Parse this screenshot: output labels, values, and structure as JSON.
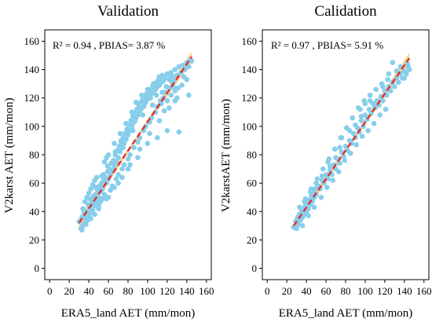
{
  "chart_data": [
    {
      "type": "scatter",
      "title": "Validation",
      "xlabel": "ERA5_land AET (mm/mon)",
      "ylabel": "V2karst AET (mm/mon)",
      "annotation": "R² = 0.94 , PBIAS= 3.87 %",
      "xlim": [
        -5,
        165
      ],
      "ylim": [
        -8,
        168
      ],
      "xticks": [
        0,
        20,
        40,
        60,
        80,
        100,
        120,
        140,
        160
      ],
      "yticks": [
        0,
        20,
        40,
        60,
        80,
        100,
        120,
        140,
        160
      ],
      "grid": false,
      "point_color": "#87CEEB",
      "fit_color": "#E32626",
      "band_color": "#F5C16C",
      "fit_line": {
        "x": [
          30,
          145
        ],
        "y": [
          32,
          149
        ]
      },
      "points": [
        [
          30,
          33
        ],
        [
          32,
          28
        ],
        [
          33,
          36
        ],
        [
          34,
          30
        ],
        [
          35,
          38
        ],
        [
          36,
          32
        ],
        [
          37,
          35
        ],
        [
          38,
          40
        ],
        [
          34,
          42
        ],
        [
          39,
          34
        ],
        [
          40,
          37
        ],
        [
          41,
          43
        ],
        [
          42,
          39
        ],
        [
          43,
          46
        ],
        [
          44,
          41
        ],
        [
          45,
          48
        ],
        [
          46,
          44
        ],
        [
          47,
          52
        ],
        [
          48,
          47
        ],
        [
          49,
          55
        ],
        [
          50,
          50
        ],
        [
          51,
          58
        ],
        [
          52,
          54
        ],
        [
          53,
          60
        ],
        [
          54,
          56
        ],
        [
          55,
          62
        ],
        [
          56,
          52
        ],
        [
          57,
          64
        ],
        [
          58,
          60
        ],
        [
          59,
          68
        ],
        [
          60,
          63
        ],
        [
          61,
          70
        ],
        [
          62,
          66
        ],
        [
          63,
          74
        ],
        [
          64,
          69
        ],
        [
          65,
          76
        ],
        [
          66,
          72
        ],
        [
          67,
          80
        ],
        [
          68,
          75
        ],
        [
          69,
          83
        ],
        [
          70,
          78
        ],
        [
          71,
          86
        ],
        [
          72,
          82
        ],
        [
          73,
          89
        ],
        [
          74,
          85
        ],
        [
          75,
          92
        ],
        [
          76,
          88
        ],
        [
          77,
          95
        ],
        [
          78,
          91
        ],
        [
          79,
          98
        ],
        [
          80,
          94
        ],
        [
          81,
          101
        ],
        [
          82,
          97
        ],
        [
          83,
          104
        ],
        [
          84,
          100
        ],
        [
          85,
          107
        ],
        [
          86,
          103
        ],
        [
          87,
          110
        ],
        [
          88,
          106
        ],
        [
          89,
          112
        ],
        [
          90,
          108
        ],
        [
          91,
          115
        ],
        [
          92,
          111
        ],
        [
          93,
          117
        ],
        [
          94,
          113
        ],
        [
          95,
          119
        ],
        [
          96,
          114
        ],
        [
          97,
          121
        ],
        [
          98,
          117
        ],
        [
          99,
          123
        ],
        [
          100,
          119
        ],
        [
          101,
          125
        ],
        [
          102,
          121
        ],
        [
          103,
          126
        ],
        [
          104,
          123
        ],
        [
          105,
          128
        ],
        [
          106,
          124
        ],
        [
          107,
          130
        ],
        [
          108,
          126
        ],
        [
          109,
          131
        ],
        [
          110,
          128
        ],
        [
          111,
          133
        ],
        [
          112,
          129
        ],
        [
          113,
          134
        ],
        [
          114,
          131
        ],
        [
          115,
          136
        ],
        [
          116,
          132
        ],
        [
          118,
          134
        ],
        [
          120,
          137
        ],
        [
          122,
          133
        ],
        [
          124,
          138
        ],
        [
          126,
          135
        ],
        [
          128,
          140
        ],
        [
          130,
          136
        ],
        [
          132,
          142
        ],
        [
          134,
          138
        ],
        [
          136,
          143
        ],
        [
          138,
          140
        ],
        [
          140,
          145
        ],
        [
          142,
          142
        ],
        [
          144,
          147
        ],
        [
          145,
          146
        ],
        [
          36,
          47
        ],
        [
          38,
          50
        ],
        [
          40,
          53
        ],
        [
          42,
          56
        ],
        [
          44,
          59
        ],
        [
          46,
          62
        ],
        [
          48,
          64
        ],
        [
          50,
          44
        ],
        [
          52,
          47
        ],
        [
          54,
          49
        ],
        [
          56,
          75
        ],
        [
          58,
          78
        ],
        [
          60,
          80
        ],
        [
          62,
          55
        ],
        [
          64,
          58
        ],
        [
          66,
          88
        ],
        [
          68,
          63
        ],
        [
          70,
          66
        ],
        [
          72,
          95
        ],
        [
          74,
          70
        ],
        [
          76,
          73
        ],
        [
          78,
          102
        ],
        [
          80,
          77
        ],
        [
          82,
          80
        ],
        [
          84,
          110
        ],
        [
          86,
          85
        ],
        [
          88,
          117
        ],
        [
          90,
          89
        ],
        [
          92,
          92
        ],
        [
          94,
          122
        ],
        [
          96,
          97
        ],
        [
          98,
          100
        ],
        [
          100,
          126
        ],
        [
          102,
          103
        ],
        [
          104,
          106
        ],
        [
          106,
          130
        ],
        [
          108,
          110
        ],
        [
          110,
          114
        ],
        [
          112,
          135
        ],
        [
          114,
          116
        ],
        [
          116,
          120
        ],
        [
          118,
          124
        ],
        [
          120,
          118
        ],
        [
          122,
          127
        ],
        [
          124,
          122
        ],
        [
          126,
          128
        ],
        [
          128,
          125
        ],
        [
          130,
          120
        ],
        [
          132,
          96
        ],
        [
          120,
          97
        ],
        [
          110,
          92
        ],
        [
          100,
          88
        ],
        [
          90,
          78
        ],
        [
          80,
          70
        ],
        [
          70,
          60
        ],
        [
          60,
          50
        ],
        [
          50,
          42
        ],
        [
          42,
          35
        ],
        [
          37,
          31
        ],
        [
          33,
          27
        ],
        [
          39,
          45
        ],
        [
          45,
          51
        ],
        [
          55,
          66
        ],
        [
          65,
          74
        ],
        [
          75,
          85
        ],
        [
          85,
          97
        ],
        [
          95,
          108
        ],
        [
          105,
          115
        ],
        [
          115,
          124
        ],
        [
          125,
          131
        ],
        [
          135,
          129
        ],
        [
          140,
          133
        ],
        [
          142,
          122
        ],
        [
          46,
          38
        ],
        [
          58,
          49
        ],
        [
          66,
          57
        ],
        [
          74,
          64
        ],
        [
          82,
          73
        ],
        [
          92,
          84
        ],
        [
          102,
          95
        ],
        [
          112,
          104
        ],
        [
          122,
          113
        ],
        [
          128,
          118
        ],
        [
          35,
          40
        ],
        [
          41,
          49
        ],
        [
          47,
          57
        ],
        [
          53,
          65
        ],
        [
          59,
          72
        ],
        [
          67,
          82
        ],
        [
          73,
          90
        ],
        [
          79,
          96
        ],
        [
          87,
          104
        ],
        [
          93,
          112
        ],
        [
          97,
          116
        ],
        [
          103,
          120
        ],
        [
          109,
          122
        ],
        [
          113,
          118
        ],
        [
          117,
          111
        ],
        [
          119,
          128
        ],
        [
          123,
          136
        ],
        [
          127,
          132
        ],
        [
          131,
          127
        ],
        [
          137,
          135
        ]
      ]
    },
    {
      "type": "scatter",
      "title": "Calidation",
      "xlabel": "ERA5_land AET (mm/mon)",
      "ylabel": "V2karstAET (mm/mon)",
      "annotation": "R² = 0.97 , PBIAS= 5.91 %",
      "xlim": [
        -5,
        165
      ],
      "ylim": [
        -8,
        168
      ],
      "xticks": [
        0,
        20,
        40,
        60,
        80,
        100,
        120,
        140,
        160
      ],
      "yticks": [
        0,
        20,
        40,
        60,
        80,
        100,
        120,
        140,
        160
      ],
      "grid": false,
      "point_color": "#87CEEB",
      "fit_color": "#E32626",
      "band_color": "#F5C16C",
      "fit_line": {
        "x": [
          27,
          145
        ],
        "y": [
          30,
          148
        ]
      },
      "points": [
        [
          27,
          29
        ],
        [
          29,
          33
        ],
        [
          30,
          28
        ],
        [
          31,
          36
        ],
        [
          32,
          31
        ],
        [
          33,
          38
        ],
        [
          34,
          34
        ],
        [
          35,
          40
        ],
        [
          36,
          36
        ],
        [
          37,
          42
        ],
        [
          38,
          38
        ],
        [
          39,
          44
        ],
        [
          40,
          40
        ],
        [
          41,
          46
        ],
        [
          42,
          42
        ],
        [
          43,
          48
        ],
        [
          44,
          45
        ],
        [
          45,
          51
        ],
        [
          46,
          47
        ],
        [
          47,
          53
        ],
        [
          48,
          50
        ],
        [
          49,
          56
        ],
        [
          50,
          52
        ],
        [
          52,
          58
        ],
        [
          54,
          56
        ],
        [
          56,
          62
        ],
        [
          58,
          60
        ],
        [
          60,
          66
        ],
        [
          62,
          63
        ],
        [
          64,
          69
        ],
        [
          66,
          66
        ],
        [
          68,
          73
        ],
        [
          70,
          70
        ],
        [
          72,
          77
        ],
        [
          74,
          74
        ],
        [
          76,
          82
        ],
        [
          78,
          79
        ],
        [
          80,
          86
        ],
        [
          82,
          83
        ],
        [
          84,
          90
        ],
        [
          86,
          88
        ],
        [
          88,
          95
        ],
        [
          90,
          92
        ],
        [
          92,
          99
        ],
        [
          94,
          96
        ],
        [
          96,
          104
        ],
        [
          98,
          100
        ],
        [
          100,
          108
        ],
        [
          102,
          105
        ],
        [
          104,
          112
        ],
        [
          106,
          109
        ],
        [
          108,
          116
        ],
        [
          110,
          113
        ],
        [
          112,
          118
        ],
        [
          114,
          115
        ],
        [
          116,
          121
        ],
        [
          118,
          118
        ],
        [
          120,
          125
        ],
        [
          122,
          122
        ],
        [
          124,
          128
        ],
        [
          126,
          125
        ],
        [
          128,
          131
        ],
        [
          130,
          128
        ],
        [
          132,
          134
        ],
        [
          134,
          131
        ],
        [
          136,
          137
        ],
        [
          138,
          134
        ],
        [
          140,
          139
        ],
        [
          142,
          137
        ],
        [
          144,
          142
        ],
        [
          145,
          140
        ],
        [
          33,
          43
        ],
        [
          39,
          49
        ],
        [
          45,
          56
        ],
        [
          51,
          63
        ],
        [
          57,
          70
        ],
        [
          63,
          77
        ],
        [
          69,
          84
        ],
        [
          75,
          92
        ],
        [
          81,
          99
        ],
        [
          87,
          106
        ],
        [
          93,
          113
        ],
        [
          99,
          118
        ],
        [
          105,
          122
        ],
        [
          111,
          126
        ],
        [
          117,
          130
        ],
        [
          123,
          133
        ],
        [
          36,
          30
        ],
        [
          42,
          37
        ],
        [
          48,
          43
        ],
        [
          55,
          50
        ],
        [
          61,
          57
        ],
        [
          67,
          62
        ],
        [
          73,
          68
        ],
        [
          79,
          76
        ],
        [
          85,
          81
        ],
        [
          91,
          87
        ],
        [
          97,
          93
        ],
        [
          103,
          97
        ],
        [
          109,
          102
        ],
        [
          115,
          108
        ],
        [
          121,
          112
        ],
        [
          95,
          112
        ],
        [
          100,
          116
        ],
        [
          105,
          118
        ],
        [
          110,
          114
        ],
        [
          118,
          128
        ],
        [
          124,
          137
        ],
        [
          128,
          145
        ],
        [
          132,
          139
        ],
        [
          136,
          142
        ],
        [
          140,
          134
        ],
        [
          143,
          144
        ],
        [
          62,
          75
        ],
        [
          70,
          78
        ],
        [
          76,
          92
        ],
        [
          84,
          97
        ],
        [
          90,
          101
        ],
        [
          96,
          107
        ],
        [
          44,
          54
        ],
        [
          50,
          60
        ],
        [
          56,
          65
        ],
        [
          38,
          47
        ],
        [
          64,
          72
        ],
        [
          74,
          85
        ]
      ]
    }
  ]
}
